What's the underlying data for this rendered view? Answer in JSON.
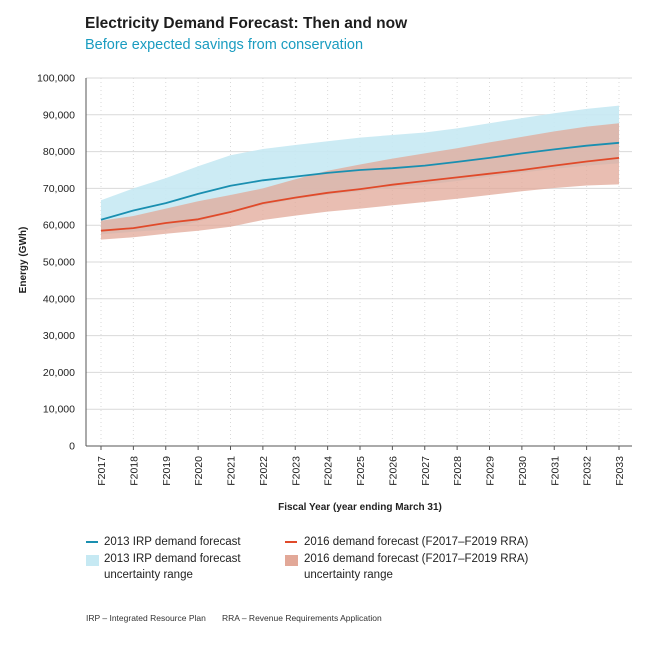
{
  "header": {
    "title": "Electricity Demand Forecast: Then and now",
    "subtitle": "Before expected savings from conservation"
  },
  "legend": {
    "irp_line": "2013 IRP demand forecast",
    "irp_range_1": "2013 IRP demand forecast",
    "irp_range_2": "uncertainty range",
    "f2016_line": "2016 demand forecast (F2017–F2019 RRA)",
    "f2016_range_1": "2016 demand forecast (F2017–F2019 RRA)",
    "f2016_range_2": "uncertainty range"
  },
  "footnotes": {
    "irp": "IRP – Integrated Resource Plan",
    "rra": "RRA – Revenue Requirements Application"
  },
  "colors": {
    "irp_line": "#1a8fb0",
    "irp_band": "#c6e9f3",
    "f2016_line": "#e04a2a",
    "f2016_band": "#e2a898",
    "grid": "#d9d9d9",
    "axis": "#555555"
  },
  "chart_data": {
    "type": "line",
    "title": "Electricity Demand Forecast: Then and now",
    "subtitle": "Before expected savings from conservation",
    "xlabel": "Fiscal Year (year ending March 31)",
    "ylabel": "Energy (GWh)",
    "ylim": [
      0,
      100000
    ],
    "yticks": [
      0,
      10000,
      20000,
      30000,
      40000,
      50000,
      60000,
      70000,
      80000,
      90000,
      100000
    ],
    "ytick_labels": [
      "0",
      "10,000",
      "20,000",
      "30,000",
      "40,000",
      "50,000",
      "60,000",
      "70,000",
      "80,000",
      "90,000",
      "100,000"
    ],
    "categories": [
      "F2017",
      "F2018",
      "F2019",
      "F2020",
      "F2021",
      "F2022",
      "F2023",
      "F2024",
      "F2025",
      "F2026",
      "F2027",
      "F2028",
      "F2029",
      "F2030",
      "F2031",
      "F2032",
      "F2033"
    ],
    "grid": true,
    "series": [
      {
        "name": "2013 IRP demand forecast",
        "kind": "line",
        "values": [
          61500,
          64000,
          66000,
          68500,
          70700,
          72200,
          73200,
          74200,
          75000,
          75500,
          76200,
          77200,
          78300,
          79500,
          80600,
          81600,
          82400
        ]
      },
      {
        "name": "2016 demand forecast (F2017–F2019 RRA)",
        "kind": "line",
        "values": [
          58500,
          59200,
          60600,
          61600,
          63600,
          66000,
          67500,
          68800,
          69800,
          71000,
          72000,
          73000,
          74000,
          75000,
          76200,
          77300,
          78300
        ]
      }
    ],
    "bands": [
      {
        "name": "2013 IRP demand forecast uncertainty range",
        "upper": [
          66800,
          70000,
          72800,
          76000,
          79000,
          80700,
          81800,
          82800,
          83800,
          84500,
          85200,
          86300,
          87700,
          89100,
          90400,
          91600,
          92500
        ],
        "lower": [
          57500,
          58200,
          58800,
          61000,
          63400,
          65400,
          67100,
          68300,
          69200,
          70300,
          71000,
          72000,
          73200,
          74300,
          75300,
          76200,
          76800
        ]
      },
      {
        "name": "2016 demand forecast (F2017–F2019 RRA) uncertainty range",
        "upper": [
          61200,
          62500,
          64500,
          66500,
          68200,
          70000,
          72500,
          74800,
          76500,
          78100,
          79500,
          80900,
          82500,
          84000,
          85500,
          86800,
          87700
        ],
        "lower": [
          56100,
          56700,
          57700,
          58500,
          59600,
          61400,
          62600,
          63700,
          64500,
          65400,
          66300,
          67200,
          68200,
          69200,
          70100,
          70800,
          71100
        ]
      }
    ]
  }
}
